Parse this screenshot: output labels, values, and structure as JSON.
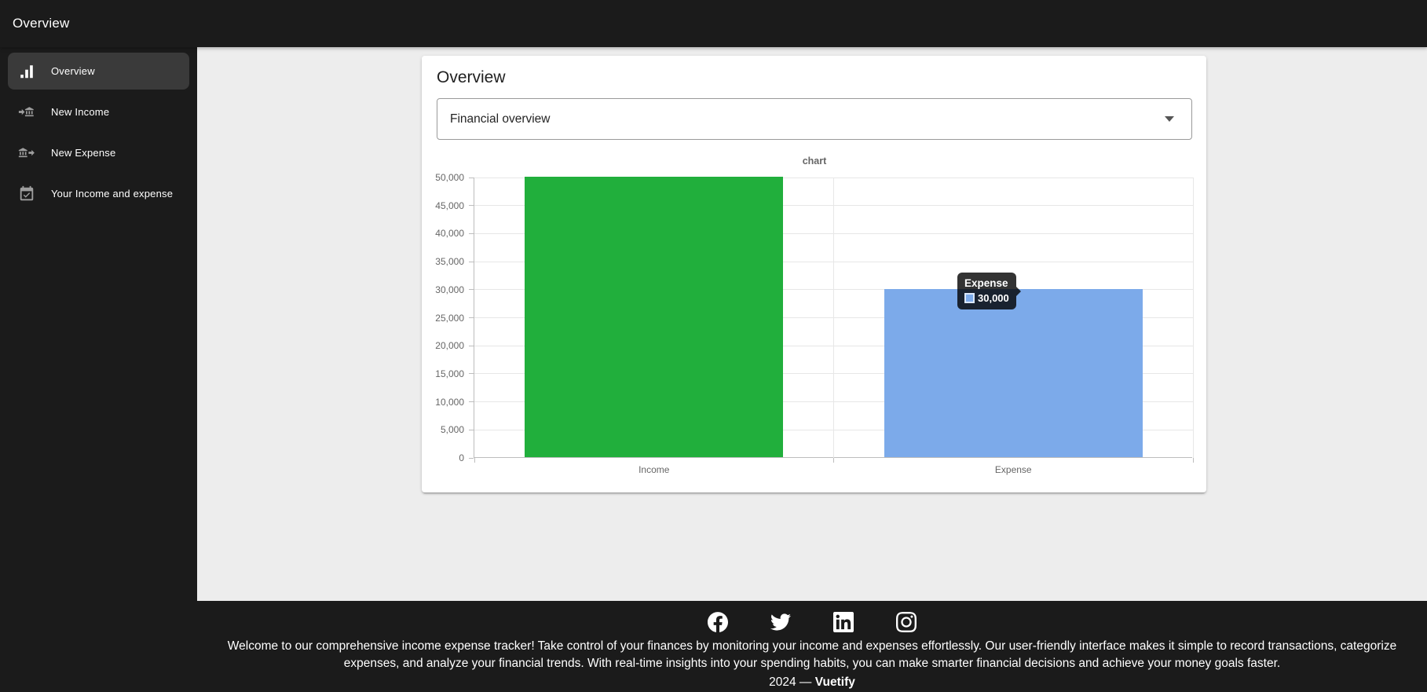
{
  "app": {
    "title": "Overview",
    "colors": {
      "dark_bg": "#1b1b1b",
      "content_bg": "#ededed",
      "active_item_bg": "#3a3a3a",
      "income_green": "#21af3c",
      "expense_blue": "#7caaea"
    }
  },
  "sidebar": {
    "items": [
      {
        "label": "Overview",
        "icon": "chart-bars-icon",
        "active": true
      },
      {
        "label": "New Income",
        "icon": "bank-transfer-in-icon",
        "active": false
      },
      {
        "label": "New Expense",
        "icon": "bank-transfer-out-icon",
        "active": false
      },
      {
        "label": "Your Income and expense",
        "icon": "calendar-check-icon",
        "active": false
      }
    ]
  },
  "main": {
    "card_title": "Overview",
    "select": {
      "value": "Financial overview"
    }
  },
  "chart_data": {
    "type": "bar",
    "title": "chart",
    "categories": [
      "Income",
      "Expense"
    ],
    "values": [
      50000,
      30000
    ],
    "colors": [
      "#21af3c",
      "#7caaea"
    ],
    "ylim": [
      0,
      50000
    ],
    "ytick_step": 5000,
    "ytick_labels": [
      "0",
      "5,000",
      "10,000",
      "15,000",
      "20,000",
      "25,000",
      "30,000",
      "35,000",
      "40,000",
      "45,000",
      "50,000"
    ],
    "grid": true,
    "legend": "none",
    "tooltip": {
      "title": "Expense",
      "value": "30,000"
    }
  },
  "footer": {
    "social": [
      "facebook",
      "twitter",
      "linkedin",
      "instagram"
    ],
    "description": "Welcome to our comprehensive income expense tracker! Take control of your finances by monitoring your income and expenses effortlessly. Our user-friendly interface makes it simple to record transactions, categorize expenses, and analyze your financial trends. With real-time insights into your spending habits, you can make smarter financial decisions and achieve your money goals faster.",
    "year_text": "2024 —",
    "brand": "Vuetify"
  }
}
